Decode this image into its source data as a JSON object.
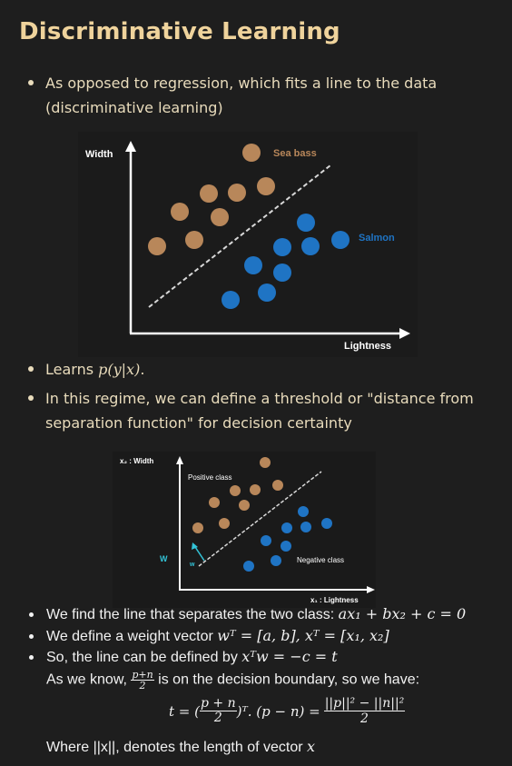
{
  "title": "Discriminative Learning",
  "bullets": {
    "b1": "As opposed to regression, which fits a line to the data (discriminative learning)",
    "b2_prefix": "Learns ",
    "b2_math": "p(y|x)",
    "b2_suffix": ".",
    "b3": "In this regime, we can define a threshold or \"distance from separation function\" for decision certainty"
  },
  "figure1": {
    "y_axis_label": "Width",
    "x_axis_label": "Lightness",
    "class_a_label": "Sea bass",
    "class_b_label": "Salmon",
    "class_a_color": "#b8875a",
    "class_b_color": "#1f74c4"
  },
  "figure2": {
    "y_axis_label": "x₂ : Width",
    "x_axis_label": "x₁ : Lightness",
    "positive_label": "Positive class",
    "negative_label": "Negative class",
    "w_outside": "W",
    "w_inside": "w",
    "accent_color": "#33c4d8"
  },
  "notes": {
    "n1_text": "We find the line that separates the two class: ",
    "n1_math": "ax₁ + bx₂ + c = 0",
    "n2_text": "We define a weight vector ",
    "n2_math": "wᵀ = [a, b], xᵀ = [x₁, x₂]",
    "n3_text": "So, the line can be defined by ",
    "n3_math": "xᵀw = −c = t",
    "n4_prefix": "As we know, ",
    "n4_frac_num": "p+n",
    "n4_frac_den": "2",
    "n4_suffix": " is on the decision boundary, so we have:",
    "eq_left": "t = (",
    "eq_frac_num": "p + n",
    "eq_frac_den": "2",
    "eq_mid": ")ᵀ. (p − n) =",
    "eq_right_num": "||p||² − ||n||²",
    "eq_right_den": "2",
    "n5_text": "Where ||x||, denotes the length of vector ",
    "n5_math": "x"
  }
}
